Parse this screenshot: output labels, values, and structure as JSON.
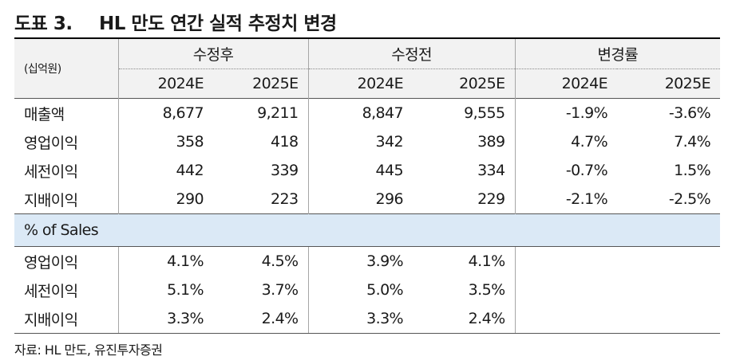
{
  "title": {
    "number": "도표 3.",
    "text": "HL 만도 연간 실적 추정치 변경"
  },
  "table": {
    "unit": "(십억원)",
    "groups": [
      "수정후",
      "수정전",
      "변경률"
    ],
    "years": [
      "2024E",
      "2025E",
      "2024E",
      "2025E",
      "2024E",
      "2025E"
    ],
    "rows": [
      {
        "label": "매출액",
        "values": [
          "8,677",
          "9,211",
          "8,847",
          "9,555",
          "-1.9%",
          "-3.6%"
        ]
      },
      {
        "label": "영업이익",
        "values": [
          "358",
          "418",
          "342",
          "389",
          "4.7%",
          "7.4%"
        ]
      },
      {
        "label": "세전이익",
        "values": [
          "442",
          "339",
          "445",
          "334",
          "-0.7%",
          "1.5%"
        ]
      },
      {
        "label": "지배이익",
        "values": [
          "290",
          "223",
          "296",
          "229",
          "-2.1%",
          "-2.5%"
        ]
      }
    ],
    "section_label": "% of Sales",
    "sales_rows": [
      {
        "label": "영업이익",
        "values": [
          "4.1%",
          "4.5%",
          "3.9%",
          "4.1%"
        ]
      },
      {
        "label": "세전이익",
        "values": [
          "5.1%",
          "3.7%",
          "5.0%",
          "3.5%"
        ]
      },
      {
        "label": "지배이익",
        "values": [
          "3.3%",
          "2.4%",
          "3.3%",
          "2.4%"
        ]
      }
    ]
  },
  "source": "자료: HL 만도, 유진투자증권"
}
